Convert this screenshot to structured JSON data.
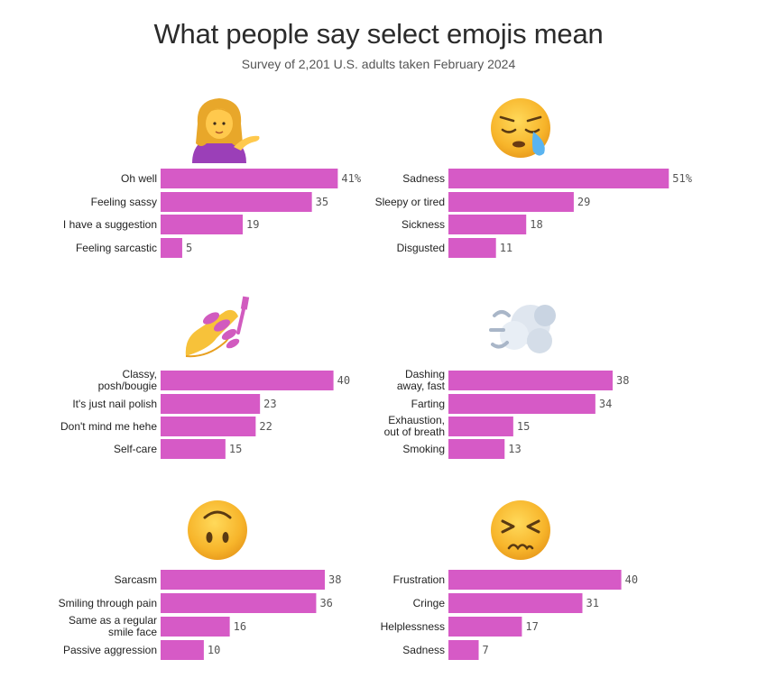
{
  "title": "What people say select emojis mean",
  "subtitle": "Survey of 2,201 U.S. adults taken February 2024",
  "colors": {
    "bar": "#d65ac6",
    "text": "#222222",
    "value": "#555555"
  },
  "chart_data": [
    {
      "type": "bar",
      "orientation": "horizontal",
      "emoji": "woman-tipping-hand",
      "categories": [
        "Oh well",
        "Feeling sassy",
        "I have a suggestion",
        "Feeling sarcastic"
      ],
      "values": [
        41,
        35,
        19,
        5
      ],
      "value_labels": [
        "41%",
        "35",
        "19",
        "5"
      ]
    },
    {
      "type": "bar",
      "orientation": "horizontal",
      "emoji": "sleepy-face",
      "categories": [
        "Sadness",
        "Sleepy or tired",
        "Sickness",
        "Disgusted"
      ],
      "values": [
        51,
        29,
        18,
        11
      ],
      "value_labels": [
        "51%",
        "29",
        "18",
        "11"
      ]
    },
    {
      "type": "bar",
      "orientation": "horizontal",
      "emoji": "nail-polish",
      "categories": [
        "Classy, posh/bougie",
        "It's just nail polish",
        "Don't mind me hehe",
        "Self-care"
      ],
      "values": [
        40,
        23,
        22,
        15
      ],
      "value_labels": [
        "40",
        "23",
        "22",
        "15"
      ]
    },
    {
      "type": "bar",
      "orientation": "horizontal",
      "emoji": "dashing-away",
      "categories": [
        "Dashing away, fast",
        "Farting",
        "Exhaustion, out of breath",
        "Smoking"
      ],
      "values": [
        38,
        34,
        15,
        13
      ],
      "value_labels": [
        "38",
        "34",
        "15",
        "13"
      ]
    },
    {
      "type": "bar",
      "orientation": "horizontal",
      "emoji": "upside-down-face",
      "categories": [
        "Sarcasm",
        "Smiling through pain",
        "Same as a regular smile face",
        "Passive aggression"
      ],
      "values": [
        38,
        36,
        16,
        10
      ],
      "value_labels": [
        "38",
        "36",
        "16",
        "10"
      ]
    },
    {
      "type": "bar",
      "orientation": "horizontal",
      "emoji": "persevering-face",
      "categories": [
        "Frustration",
        "Cringe",
        "Helplessness",
        "Sadness"
      ],
      "values": [
        40,
        31,
        17,
        7
      ],
      "value_labels": [
        "40",
        "31",
        "17",
        "7"
      ]
    }
  ]
}
